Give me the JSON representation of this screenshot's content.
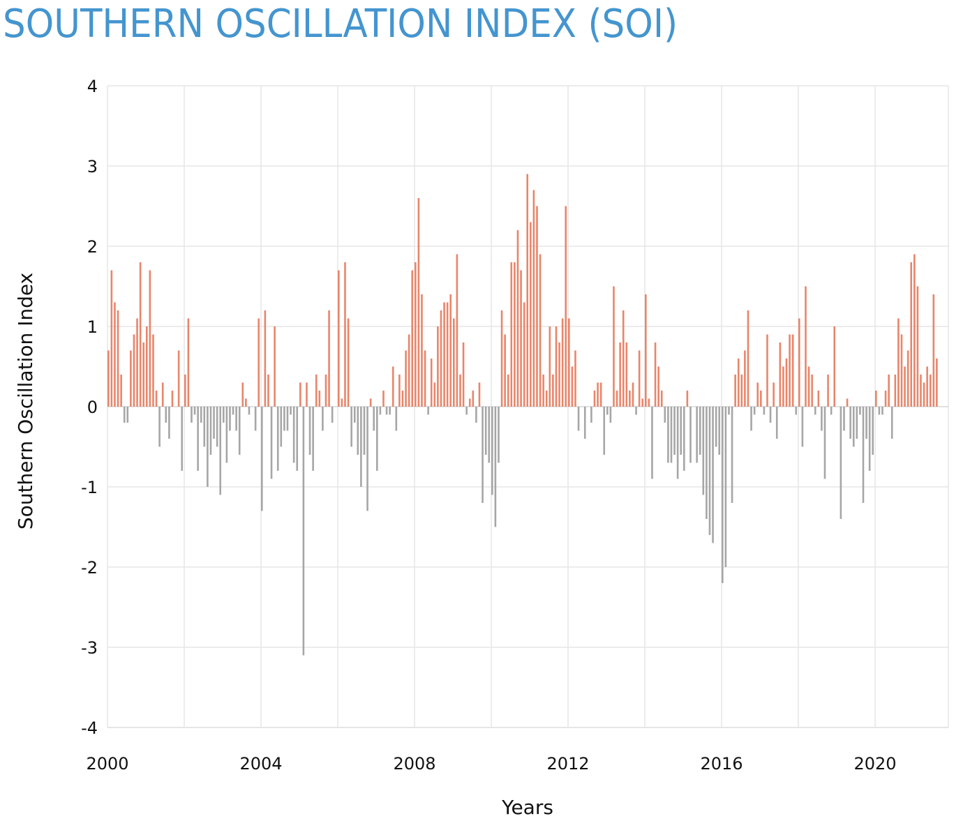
{
  "chart_data": {
    "type": "bar",
    "title": "SOUTHERN OSCILLATION INDEX (SOI)",
    "xlabel": "Years",
    "ylabel": "Southern Oscillation Index",
    "ylim": [
      -4,
      4
    ],
    "xlim": [
      2000,
      2022
    ],
    "yticks": [
      "4",
      "3",
      "2",
      "1",
      "0",
      "-1",
      "-2",
      "-3",
      "-4"
    ],
    "xticks": [
      "2000",
      "2004",
      "2008",
      "2012",
      "2016",
      "2020"
    ],
    "grid": true,
    "frequency": "monthly",
    "start": "2000-01",
    "colors": {
      "positive": "#e8856a",
      "negative": "#a6a6a6",
      "title": "#4495cf",
      "grid": "#e6e6e6"
    },
    "series": [
      {
        "name": "2000",
        "values": [
          0.7,
          1.7,
          1.3,
          1.2,
          0.4,
          -0.2,
          -0.2,
          0.7,
          0.9,
          1.1,
          1.8,
          0.8
        ]
      },
      {
        "name": "2001",
        "values": [
          1.0,
          1.7,
          0.9,
          0.2,
          -0.5,
          0.3,
          -0.2,
          -0.4,
          0.2,
          0.0,
          0.7,
          -0.8
        ]
      },
      {
        "name": "2002",
        "values": [
          0.4,
          1.1,
          -0.2,
          -0.1,
          -0.8,
          -0.2,
          -0.5,
          -1.0,
          -0.6,
          -0.4,
          -0.5,
          -1.1
        ]
      },
      {
        "name": "2003",
        "values": [
          -0.2,
          -0.7,
          -0.3,
          -0.1,
          -0.3,
          -0.6,
          0.3,
          0.1,
          -0.1,
          0.0,
          -0.3,
          1.1
        ]
      },
      {
        "name": "2004",
        "values": [
          -1.3,
          1.2,
          0.4,
          -0.9,
          1.0,
          -0.8,
          -0.5,
          -0.3,
          -0.3,
          -0.1,
          -0.7,
          -0.8
        ]
      },
      {
        "name": "2005",
        "values": [
          0.3,
          -3.1,
          0.3,
          -0.6,
          -0.8,
          0.4,
          0.2,
          -0.3,
          0.4,
          1.2,
          -0.2,
          0.0
        ]
      },
      {
        "name": "2006",
        "values": [
          1.7,
          0.1,
          1.8,
          1.1,
          -0.5,
          -0.2,
          -0.6,
          -1.0,
          -0.6,
          -1.3,
          0.1,
          -0.3
        ]
      },
      {
        "name": "2007",
        "values": [
          -0.8,
          -0.1,
          0.2,
          -0.1,
          -0.1,
          0.5,
          -0.3,
          0.4,
          0.2,
          0.7,
          0.9,
          1.7
        ]
      },
      {
        "name": "2008",
        "values": [
          1.8,
          2.6,
          1.4,
          0.7,
          -0.1,
          0.6,
          0.3,
          1.0,
          1.2,
          1.3,
          1.3,
          1.4
        ]
      },
      {
        "name": "2009",
        "values": [
          1.1,
          1.9,
          0.4,
          0.8,
          -0.1,
          0.1,
          0.2,
          -0.2,
          0.3,
          -1.2,
          -0.6,
          -0.7
        ]
      },
      {
        "name": "2010",
        "values": [
          -1.1,
          -1.5,
          -0.7,
          1.2,
          0.9,
          0.4,
          1.8,
          1.8,
          2.2,
          1.7,
          1.3,
          2.9
        ]
      },
      {
        "name": "2011",
        "values": [
          2.3,
          2.7,
          2.5,
          1.9,
          0.4,
          0.2,
          1.0,
          0.4,
          1.0,
          0.8,
          1.1,
          2.5
        ]
      },
      {
        "name": "2012",
        "values": [
          1.1,
          0.5,
          0.7,
          -0.3,
          0.0,
          -0.4,
          0.0,
          -0.2,
          0.2,
          0.3,
          0.3,
          -0.6
        ]
      },
      {
        "name": "2013",
        "values": [
          -0.1,
          -0.2,
          1.5,
          0.2,
          0.8,
          1.2,
          0.8,
          0.2,
          0.3,
          -0.1,
          0.7,
          0.1
        ]
      },
      {
        "name": "2014",
        "values": [
          1.4,
          0.1,
          -0.9,
          0.8,
          0.5,
          0.2,
          -0.2,
          -0.7,
          -0.7,
          -0.6,
          -0.9,
          -0.6
        ]
      },
      {
        "name": "2015",
        "values": [
          -0.8,
          0.2,
          -0.7,
          0.0,
          -0.7,
          -0.6,
          -1.1,
          -1.4,
          -1.6,
          -1.7,
          -0.5,
          -0.6
        ]
      },
      {
        "name": "2016",
        "values": [
          -2.2,
          -2.0,
          -0.1,
          -1.2,
          0.4,
          0.6,
          0.4,
          0.7,
          1.2,
          -0.3,
          -0.1,
          0.3
        ]
      },
      {
        "name": "2017",
        "values": [
          0.2,
          -0.1,
          0.9,
          -0.2,
          0.3,
          -0.4,
          0.8,
          0.5,
          0.6,
          0.9,
          0.9,
          -0.1
        ]
      },
      {
        "name": "2018",
        "values": [
          1.1,
          -0.5,
          1.5,
          0.5,
          0.4,
          -0.1,
          0.2,
          -0.3,
          -0.9,
          0.4,
          -0.1,
          1.0
        ]
      },
      {
        "name": "2019",
        "values": [
          0.0,
          -1.4,
          -0.3,
          0.1,
          -0.4,
          -0.5,
          -0.4,
          -0.1,
          -1.2,
          -0.4,
          -0.8,
          -0.6
        ]
      },
      {
        "name": "2020",
        "values": [
          0.2,
          -0.1,
          -0.1,
          0.2,
          0.4,
          -0.4,
          0.4,
          1.1,
          0.9,
          0.5,
          0.7,
          1.8
        ]
      },
      {
        "name": "2021",
        "values": [
          1.9,
          1.5,
          0.4,
          0.3,
          0.5,
          0.4,
          1.4,
          0.6
        ]
      }
    ]
  }
}
